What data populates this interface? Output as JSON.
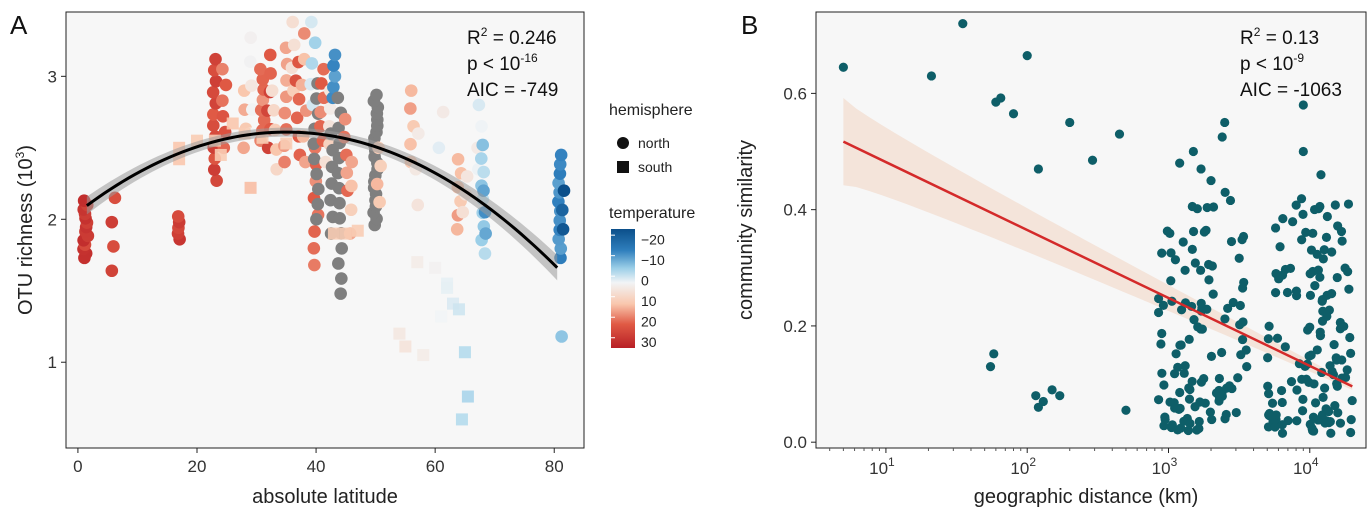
{
  "chart_data": [
    {
      "type": "scatter",
      "panel_label": "A",
      "xlabel": "absolute latitude",
      "ylabel": "OTU richness (10",
      "ylabel_sup": "3",
      "ylabel_tail": ")",
      "x_ticks": [
        0,
        20,
        40,
        60,
        80
      ],
      "y_ticks": [
        1,
        2,
        3
      ],
      "xlim": [
        -2,
        85
      ],
      "ylim": [
        0.4,
        3.45
      ],
      "grid": false,
      "stats": {
        "r2_text": "R",
        "r2_sup": "2",
        "r2_value": " = 0.246",
        "p_text": "p < 10",
        "p_sup": "-16",
        "aic_text": "AIC = -749"
      },
      "legend_shape": {
        "title": "hemisphere",
        "items": [
          {
            "label": "north",
            "shape": "circle"
          },
          {
            "label": "south",
            "shape": "square"
          }
        ]
      },
      "legend_color": {
        "title": "temperature",
        "ticks": [
          "−20",
          "−10",
          "0",
          "10",
          "20",
          "30"
        ],
        "tick_values": [
          -20,
          -10,
          0,
          10,
          20,
          30
        ],
        "range": [
          -25,
          33
        ]
      },
      "fit": {
        "type": "quadratic",
        "x_range": [
          1.5,
          81
        ],
        "peak_x": 35,
        "peak_y": 2.61,
        "end_y": 1.64,
        "ci": 0.09,
        "color": "#000000"
      },
      "na_color": "#7f7f7f",
      "north_groups": [
        {
          "x": 1.3,
          "y_min": 1.73,
          "y_max": 2.13,
          "n": 14,
          "t": 27
        },
        {
          "x": 6,
          "y_min": 1.64,
          "y_max": 2.15,
          "n": 4,
          "t": 26
        },
        {
          "x": 17,
          "y_min": 1.86,
          "y_max": 2.02,
          "n": 5,
          "t": 26
        },
        {
          "x": 23,
          "y_min": 2.27,
          "y_max": 3.12,
          "n": 12,
          "t": 24
        },
        {
          "x": 24.5,
          "y_min": 2.5,
          "y_max": 3.05,
          "n": 6,
          "t": 20
        },
        {
          "x": 28,
          "y_min": 2.5,
          "y_max": 2.9,
          "n": 4,
          "t": 12
        },
        {
          "x": 29,
          "y_min": 2.6,
          "y_max": 3.27,
          "n": 5,
          "t": 3
        },
        {
          "x": 31,
          "y_min": 2.55,
          "y_max": 3.05,
          "n": 8,
          "t": 18
        },
        {
          "x": 32,
          "y_min": 2.5,
          "y_max": 3.15,
          "n": 6,
          "t": 23
        },
        {
          "x": 33,
          "y_min": 2.35,
          "y_max": 2.9,
          "n": 5,
          "t": 9
        },
        {
          "x": 35,
          "y_min": 2.4,
          "y_max": 3.2,
          "n": 8,
          "t": 16
        },
        {
          "x": 36,
          "y_min": 2.9,
          "y_max": 3.38,
          "n": 4,
          "t": 8
        },
        {
          "x": 37,
          "y_min": 2.45,
          "y_max": 3.1,
          "n": 6,
          "t": 21
        },
        {
          "x": 38,
          "y_min": 2.4,
          "y_max": 3.3,
          "n": 6,
          "t": 14
        },
        {
          "x": 39.5,
          "y_min": 2.8,
          "y_max": 3.38,
          "n": 5,
          "t": -4
        },
        {
          "x": 40,
          "y_min": 1.68,
          "y_max": 2.5,
          "n": 8,
          "t": 19
        },
        {
          "x": 40,
          "y_min": 2.0,
          "y_max": 2.95,
          "n": 10,
          "t": null
        },
        {
          "x": 41,
          "y_min": 2.55,
          "y_max": 3.05,
          "n": 6,
          "t": 19
        },
        {
          "x": 42,
          "y_min": 2.4,
          "y_max": 2.9,
          "n": 5,
          "t": 6
        },
        {
          "x": 42.5,
          "y_min": 1.9,
          "y_max": 2.6,
          "n": 7,
          "t": null
        },
        {
          "x": 43,
          "y_min": 2.85,
          "y_max": 3.15,
          "n": 5,
          "t": -15
        },
        {
          "x": 44,
          "y_min": 1.48,
          "y_max": 2.85,
          "n": 14,
          "t": null
        },
        {
          "x": 45,
          "y_min": 2.2,
          "y_max": 2.7,
          "n": 5,
          "t": 17
        },
        {
          "x": 46,
          "y_min": 1.9,
          "y_max": 2.4,
          "n": 4,
          "t": 12
        },
        {
          "x": 50,
          "y_min": 1.96,
          "y_max": 2.87,
          "n": 22,
          "t": null
        },
        {
          "x": 50.5,
          "y_min": 2.12,
          "y_max": 2.5,
          "n": 4,
          "t": 11
        },
        {
          "x": 56,
          "y_min": 2.4,
          "y_max": 2.9,
          "n": 5,
          "t": 13
        },
        {
          "x": 57,
          "y_min": 2.1,
          "y_max": 2.6,
          "n": 3,
          "t": 3
        },
        {
          "x": 61,
          "y_min": 2.5,
          "y_max": 2.75,
          "n": 2,
          "t": 2
        },
        {
          "x": 64,
          "y_min": 1.93,
          "y_max": 2.42,
          "n": 6,
          "t": 13
        },
        {
          "x": 65,
          "y_min": 2.05,
          "y_max": 2.3,
          "n": 3,
          "t": 5
        },
        {
          "x": 67.5,
          "y_min": 2.35,
          "y_max": 2.8,
          "n": 4,
          "t": 1
        },
        {
          "x": 68,
          "y_min": 1.76,
          "y_max": 2.52,
          "n": 9,
          "t": -6
        },
        {
          "x": 68.5,
          "y_min": 1.9,
          "y_max": 2.2,
          "n": 3,
          "t": -14
        },
        {
          "x": 81,
          "y_min": 1.73,
          "y_max": 2.45,
          "n": 12,
          "t": -16
        },
        {
          "x": 81.5,
          "y_min": 1.93,
          "y_max": 2.2,
          "n": 3,
          "t": -23
        },
        {
          "x": 81,
          "y_min": 1.18,
          "y_max": 1.18,
          "n": 1,
          "t": -5
        }
      ],
      "south_points": [
        {
          "x": 17,
          "y": 2.5,
          "t": 11
        },
        {
          "x": 17,
          "y": 2.42,
          "t": 11
        },
        {
          "x": 20,
          "y": 2.55,
          "t": 10
        },
        {
          "x": 23,
          "y": 2.55,
          "t": 10
        },
        {
          "x": 24,
          "y": 2.45,
          "t": 10
        },
        {
          "x": 28,
          "y": 2.6,
          "t": 10
        },
        {
          "x": 31,
          "y": 2.57,
          "t": 10
        },
        {
          "x": 26,
          "y": 2.67,
          "t": 11
        },
        {
          "x": 29,
          "y": 2.22,
          "t": 12
        },
        {
          "x": 35,
          "y": 2.53,
          "t": 10
        },
        {
          "x": 43,
          "y": 1.9,
          "t": 10
        },
        {
          "x": 45,
          "y": 1.9,
          "t": 10
        },
        {
          "x": 47,
          "y": 1.92,
          "t": 10
        },
        {
          "x": 55,
          "y": 1.11,
          "t": 5
        },
        {
          "x": 54,
          "y": 1.2,
          "t": 4
        },
        {
          "x": 58,
          "y": 1.05,
          "t": 3
        },
        {
          "x": 60,
          "y": 1.66,
          "t": 2
        },
        {
          "x": 61,
          "y": 1.32,
          "t": 1
        },
        {
          "x": 62,
          "y": 1.55,
          "t": 0
        },
        {
          "x": 63,
          "y": 1.41,
          "t": -1
        },
        {
          "x": 64,
          "y": 1.37,
          "t": -2
        },
        {
          "x": 65,
          "y": 1.07,
          "t": -4
        },
        {
          "x": 65.5,
          "y": 0.76,
          "t": -5
        },
        {
          "x": 64.5,
          "y": 0.6,
          "t": -4
        },
        {
          "x": 62,
          "y": 1.52,
          "t": 0
        },
        {
          "x": 57,
          "y": 1.7,
          "t": 3
        }
      ]
    },
    {
      "type": "scatter",
      "panel_label": "B",
      "xlabel": "geographic distance (km)",
      "ylabel": "community similarity",
      "x_scale": "log10",
      "xlim": [
        3.2,
        25000
      ],
      "ylim": [
        -0.01,
        0.74
      ],
      "x_tick_values": [
        10,
        100,
        1000,
        10000
      ],
      "x_tick_base": "10",
      "x_tick_exps": [
        "1",
        "2",
        "3",
        "4"
      ],
      "y_ticks": [
        0.0,
        0.2,
        0.4,
        0.6
      ],
      "y_tick_labels": [
        "0.0",
        "0.2",
        "0.4",
        "0.6"
      ],
      "grid": false,
      "stats": {
        "r2_text": "R",
        "r2_sup": "2",
        "r2_value": " = 0.13",
        "p_text": "p < 10",
        "p_sup": "-9",
        "aic_text": "AIC = -1063"
      },
      "point_color": "#0e5e68",
      "fit": {
        "x_range": [
          5,
          20000
        ],
        "y_start": 0.517,
        "y_end": 0.096,
        "ci_start": 0.075,
        "ci_end": 0.006,
        "color": "#d42a2a"
      },
      "points": [
        {
          "x": 5,
          "y": 0.645
        },
        {
          "x": 21,
          "y": 0.63
        },
        {
          "x": 35,
          "y": 0.72
        },
        {
          "x": 60,
          "y": 0.585
        },
        {
          "x": 65,
          "y": 0.592
        },
        {
          "x": 80,
          "y": 0.565
        },
        {
          "x": 100,
          "y": 0.665
        },
        {
          "x": 120,
          "y": 0.47
        },
        {
          "x": 200,
          "y": 0.55
        },
        {
          "x": 290,
          "y": 0.485
        },
        {
          "x": 450,
          "y": 0.53
        },
        {
          "x": 55,
          "y": 0.13
        },
        {
          "x": 58,
          "y": 0.152
        },
        {
          "x": 115,
          "y": 0.08
        },
        {
          "x": 120,
          "y": 0.06
        },
        {
          "x": 130,
          "y": 0.07
        },
        {
          "x": 150,
          "y": 0.09
        },
        {
          "x": 170,
          "y": 0.08
        },
        {
          "x": 500,
          "y": 0.055
        },
        {
          "x": 1500,
          "y": 0.5
        },
        {
          "x": 2500,
          "y": 0.55
        },
        {
          "x": 2400,
          "y": 0.525
        },
        {
          "x": 1700,
          "y": 0.47
        },
        {
          "x": 9000,
          "y": 0.58
        },
        {
          "x": 9000,
          "y": 0.5
        },
        {
          "x": 12000,
          "y": 0.46
        },
        {
          "x": 1200,
          "y": 0.48
        },
        {
          "x": 2000,
          "y": 0.45
        }
      ],
      "clusters": [
        {
          "x_min": 850,
          "x_max": 3600,
          "y_min": 0.02,
          "y_max": 0.43,
          "n": 115
        },
        {
          "x_min": 5000,
          "x_max": 20000,
          "y_min": 0.015,
          "y_max": 0.42,
          "n": 135
        }
      ]
    }
  ]
}
